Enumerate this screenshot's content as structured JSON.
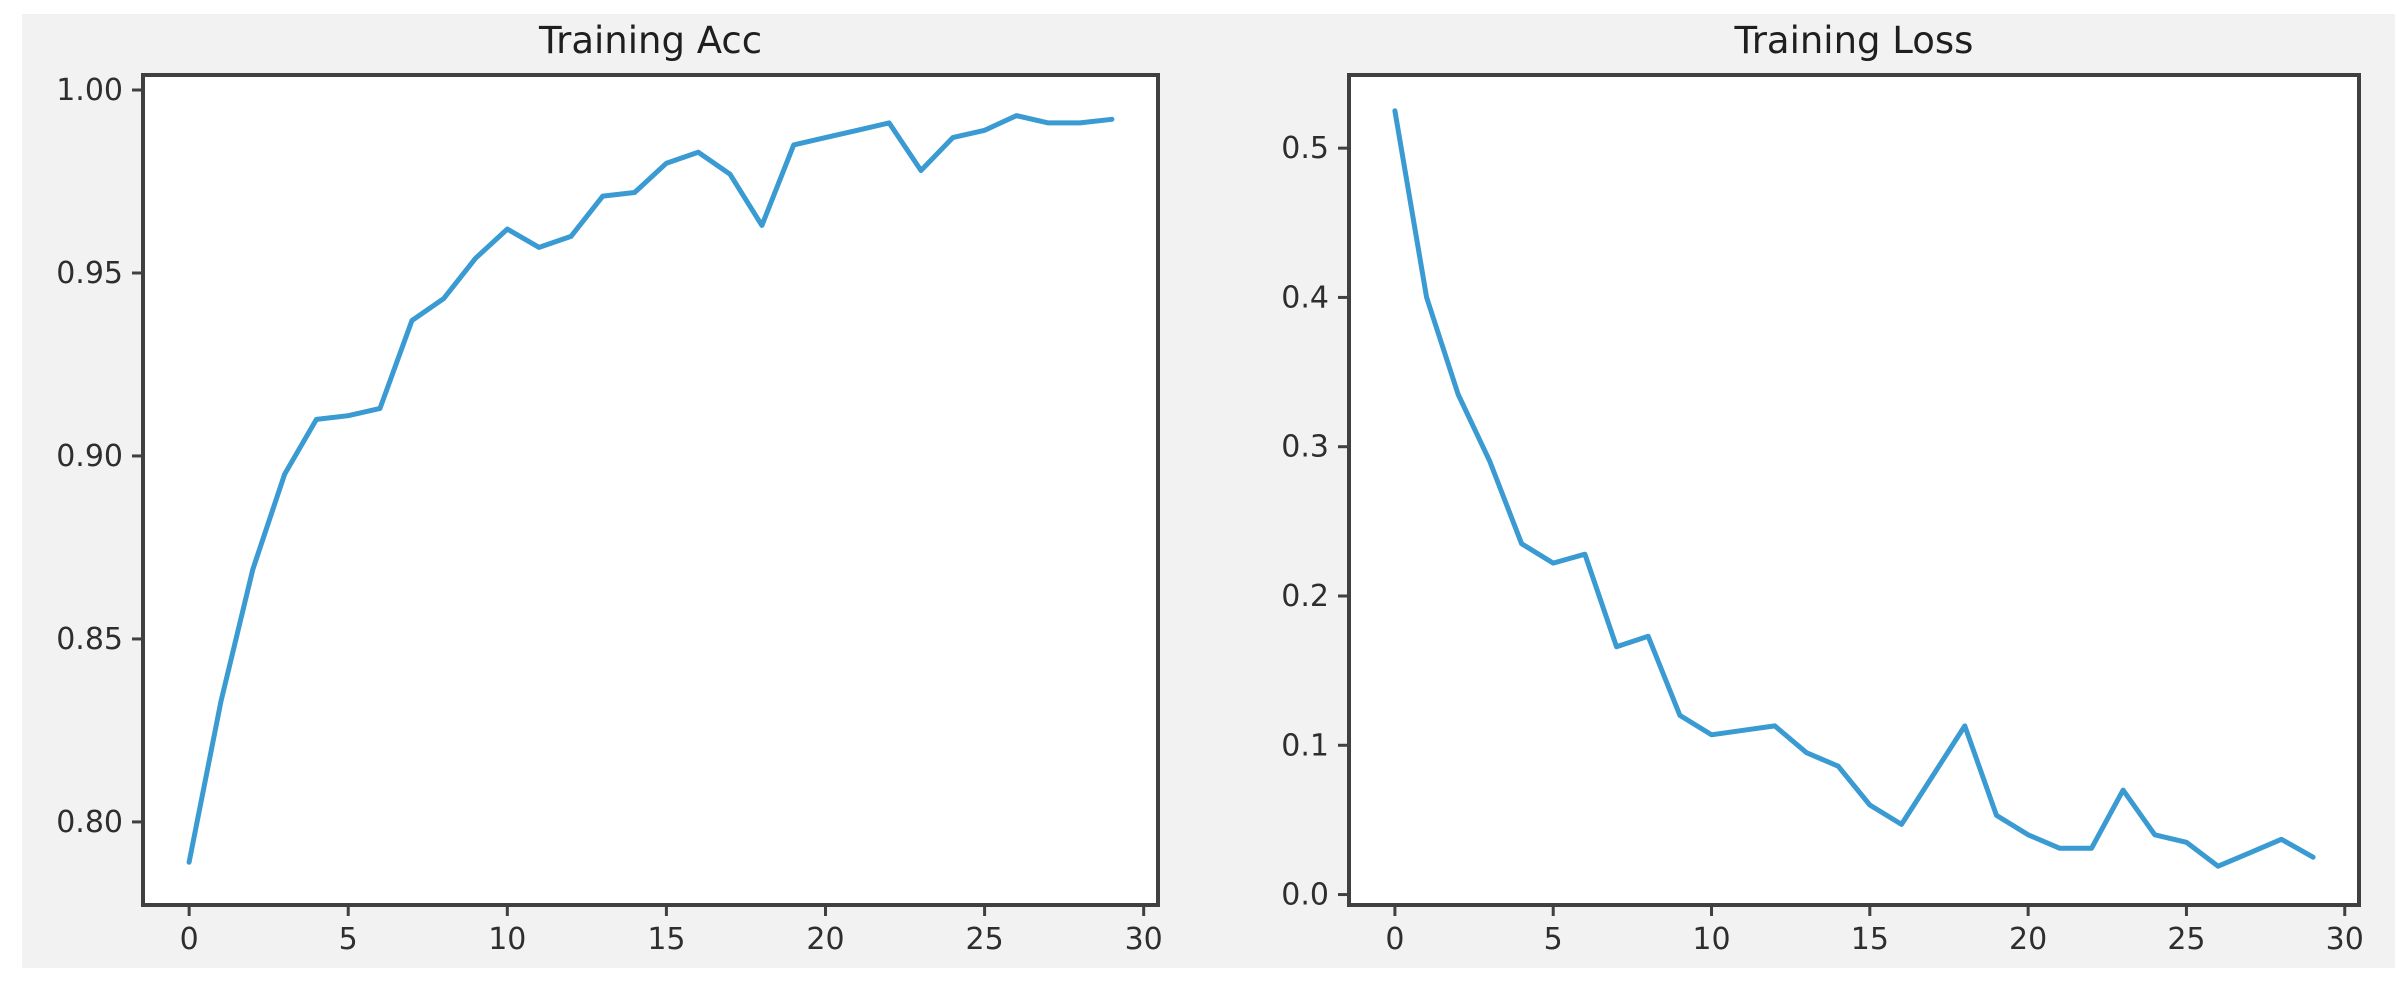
{
  "figure": {
    "background_color": "#f2f2f2",
    "margin_color": "#ffffff",
    "plot_background": "#ffffff",
    "spine_color": "#404040",
    "text_color": "#2e2e2e"
  },
  "chart_data": [
    {
      "type": "line",
      "title": "Training Acc",
      "xlabel": "",
      "ylabel": "",
      "legend": null,
      "grid": false,
      "line_color": "#3a9ad2",
      "x": [
        0,
        1,
        2,
        3,
        4,
        5,
        6,
        7,
        8,
        9,
        10,
        11,
        12,
        13,
        14,
        15,
        16,
        17,
        18,
        19,
        20,
        21,
        22,
        23,
        24,
        25,
        26,
        27,
        28,
        29
      ],
      "values": [
        0.789,
        0.833,
        0.869,
        0.895,
        0.91,
        0.911,
        0.913,
        0.937,
        0.943,
        0.954,
        0.962,
        0.957,
        0.96,
        0.971,
        0.972,
        0.98,
        0.983,
        0.977,
        0.963,
        0.985,
        0.987,
        0.989,
        0.991,
        0.978,
        0.987,
        0.989,
        0.993,
        0.991,
        0.991,
        0.992
      ],
      "xlim": [
        -1.45,
        30.45
      ],
      "ylim": [
        0.7773,
        1.0041
      ],
      "xticks": [
        0,
        5,
        10,
        15,
        20,
        25,
        30
      ],
      "xtick_labels": [
        "0",
        "5",
        "10",
        "15",
        "20",
        "25",
        "30"
      ],
      "yticks": [
        0.8,
        0.85,
        0.9,
        0.95,
        1.0
      ],
      "ytick_labels": [
        "0.80",
        "0.85",
        "0.90",
        "0.95",
        "1.00"
      ]
    },
    {
      "type": "line",
      "title": "Training Loss",
      "xlabel": "",
      "ylabel": "",
      "legend": null,
      "grid": false,
      "line_color": "#3a9ad2",
      "x": [
        0,
        1,
        2,
        3,
        4,
        5,
        6,
        7,
        8,
        9,
        10,
        11,
        12,
        13,
        14,
        15,
        16,
        17,
        18,
        19,
        20,
        21,
        22,
        23,
        24,
        25,
        26,
        27,
        28,
        29
      ],
      "values": [
        0.525,
        0.4,
        0.335,
        0.29,
        0.235,
        0.222,
        0.228,
        0.166,
        0.173,
        0.12,
        0.107,
        0.11,
        0.113,
        0.095,
        0.086,
        0.06,
        0.047,
        0.08,
        0.113,
        0.053,
        0.04,
        0.031,
        0.031,
        0.07,
        0.04,
        0.035,
        0.019,
        0.028,
        0.037,
        0.025
      ],
      "xlim": [
        -1.45,
        30.45
      ],
      "ylim": [
        -0.007,
        0.549
      ],
      "xticks": [
        0,
        5,
        10,
        15,
        20,
        25,
        30
      ],
      "xtick_labels": [
        "0",
        "5",
        "10",
        "15",
        "20",
        "25",
        "30"
      ],
      "yticks": [
        0.0,
        0.1,
        0.2,
        0.3,
        0.4,
        0.5
      ],
      "ytick_labels": [
        "0.0",
        "0.1",
        "0.2",
        "0.3",
        "0.4",
        "0.5"
      ]
    }
  ]
}
